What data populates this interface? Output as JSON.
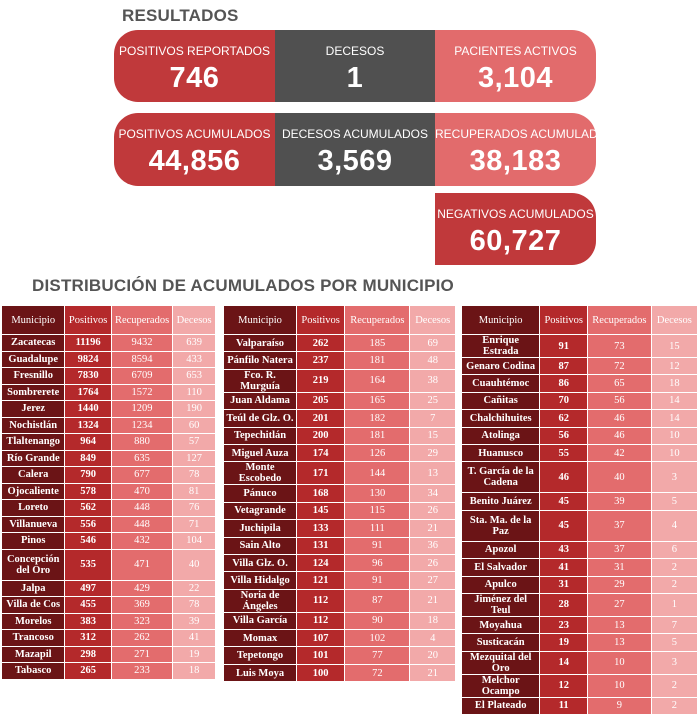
{
  "results_title": "RESULTADOS",
  "cards": {
    "positivos_reportados": {
      "label": "POSITIVOS REPORTADOS",
      "value": "746"
    },
    "decesos": {
      "label": "DECESOS",
      "value": "1"
    },
    "pacientes_activos": {
      "label": "PACIENTES ACTIVOS",
      "value": "3,104"
    },
    "positivos_acumulados": {
      "label": "POSITIVOS ACUMULADOS",
      "value": "44,856"
    },
    "decesos_acumulados": {
      "label": "DECESOS ACUMULADOS",
      "value": "3,569"
    },
    "recuperados_acumulados": {
      "label": "RECUPERADOS ACUMULADOS",
      "value": "38,183"
    },
    "negativos_acumulados": {
      "label": "NEGATIVOS ACUMULADOS",
      "value": "60,727"
    }
  },
  "distribution_title": "DISTRIBUCIÓN DE ACUMULADOS POR MUNICIPIO",
  "headers": {
    "municipio": "Municipio",
    "positivos": "Positivos",
    "recuperados": "Recuperados",
    "decesos": "Decesos"
  },
  "colors": {
    "dark_red": "#6b1416",
    "red": "#c0393b",
    "gray": "#505050",
    "pink": "#e26b6c",
    "light_pink": "#f2a9a9"
  },
  "tables": [
    [
      [
        "Zacatecas",
        "11196",
        "9432",
        "639"
      ],
      [
        "Guadalupe",
        "9824",
        "8594",
        "433"
      ],
      [
        "Fresnillo",
        "7830",
        "6709",
        "653"
      ],
      [
        "Sombrerete",
        "1764",
        "1572",
        "110"
      ],
      [
        "Jerez",
        "1440",
        "1209",
        "190"
      ],
      [
        "Nochistlán",
        "1324",
        "1234",
        "60"
      ],
      [
        "Tlaltenango",
        "964",
        "880",
        "57"
      ],
      [
        "Río Grande",
        "849",
        "635",
        "127"
      ],
      [
        "Calera",
        "790",
        "677",
        "78"
      ],
      [
        "Ojocaliente",
        "578",
        "470",
        "81"
      ],
      [
        "Loreto",
        "562",
        "448",
        "76"
      ],
      [
        "Villanueva",
        "556",
        "448",
        "71"
      ],
      [
        "Pinos",
        "546",
        "432",
        "104"
      ],
      [
        "Concepción del Oro",
        "535",
        "471",
        "40"
      ],
      [
        "Jalpa",
        "497",
        "429",
        "22"
      ],
      [
        "Villa de Cos",
        "455",
        "369",
        "78"
      ],
      [
        "Morelos",
        "383",
        "323",
        "39"
      ],
      [
        "Trancoso",
        "312",
        "262",
        "41"
      ],
      [
        "Mazapil",
        "298",
        "271",
        "19"
      ],
      [
        "Tabasco",
        "265",
        "233",
        "18"
      ]
    ],
    [
      [
        "Valparaíso",
        "262",
        "185",
        "69"
      ],
      [
        "Pánfilo Natera",
        "237",
        "181",
        "48"
      ],
      [
        "Fco. R. Murguía",
        "219",
        "164",
        "38"
      ],
      [
        "Juan Aldama",
        "205",
        "165",
        "25"
      ],
      [
        "Teúl de Glz. O.",
        "201",
        "182",
        "7"
      ],
      [
        "Tepechitlán",
        "200",
        "181",
        "15"
      ],
      [
        "Miguel Auza",
        "174",
        "126",
        "29"
      ],
      [
        "Monte Escobedo",
        "171",
        "144",
        "13"
      ],
      [
        "Pánuco",
        "168",
        "130",
        "34"
      ],
      [
        "Vetagrande",
        "145",
        "115",
        "26"
      ],
      [
        "Juchipila",
        "133",
        "111",
        "21"
      ],
      [
        "Sain Alto",
        "131",
        "91",
        "36"
      ],
      [
        "Villa Glz. O.",
        "124",
        "96",
        "26"
      ],
      [
        "Villa Hidalgo",
        "121",
        "91",
        "27"
      ],
      [
        "Noria de Ángeles",
        "112",
        "87",
        "21"
      ],
      [
        "Villa García",
        "112",
        "90",
        "18"
      ],
      [
        "Momax",
        "107",
        "102",
        "4"
      ],
      [
        "Tepetongo",
        "101",
        "77",
        "20"
      ],
      [
        "Luis Moya",
        "100",
        "72",
        "21"
      ]
    ],
    [
      [
        "Enrique Estrada",
        "91",
        "73",
        "15"
      ],
      [
        "Genaro Codina",
        "87",
        "72",
        "12"
      ],
      [
        "Cuauhtémoc",
        "86",
        "65",
        "18"
      ],
      [
        "Cañitas",
        "70",
        "56",
        "14"
      ],
      [
        "Chalchihuites",
        "62",
        "46",
        "14"
      ],
      [
        "Atolinga",
        "56",
        "46",
        "10"
      ],
      [
        "Huanusco",
        "55",
        "42",
        "10"
      ],
      [
        "T. García de la Cadena",
        "46",
        "40",
        "3"
      ],
      [
        "Benito Juárez",
        "45",
        "39",
        "5"
      ],
      [
        "Sta. Ma. de la Paz",
        "45",
        "37",
        "4"
      ],
      [
        "Apozol",
        "43",
        "37",
        "6"
      ],
      [
        "El Salvador",
        "41",
        "31",
        "2"
      ],
      [
        "Apulco",
        "31",
        "29",
        "2"
      ],
      [
        "Jiménez del Teul",
        "28",
        "27",
        "1"
      ],
      [
        "Moyahua",
        "23",
        "13",
        "7"
      ],
      [
        "Susticacán",
        "19",
        "13",
        "5"
      ],
      [
        "Mezquital del Oro",
        "14",
        "10",
        "3"
      ],
      [
        "Melchor Ocampo",
        "12",
        "10",
        "2"
      ],
      [
        "El Plateado",
        "11",
        "9",
        "2"
      ]
    ]
  ]
}
